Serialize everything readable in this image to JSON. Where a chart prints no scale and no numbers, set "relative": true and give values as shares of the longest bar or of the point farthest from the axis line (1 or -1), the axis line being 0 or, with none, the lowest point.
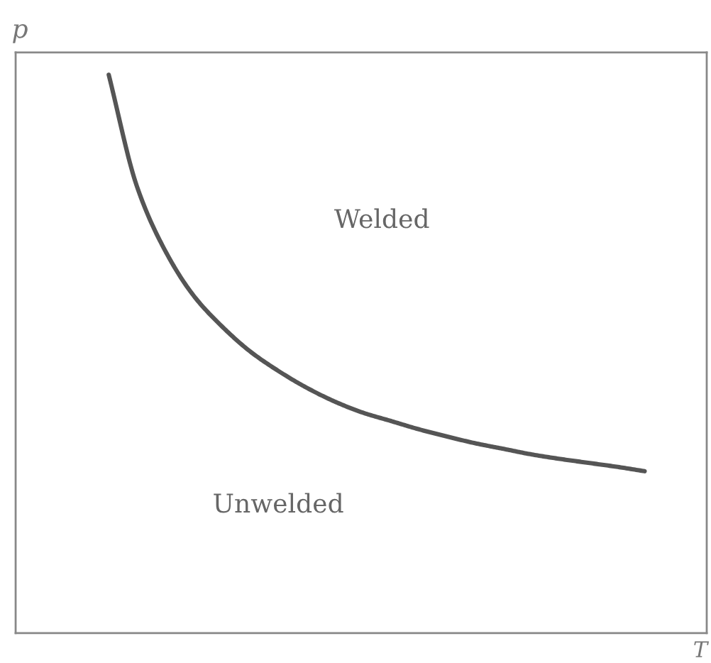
{
  "chart_data": {
    "type": "line",
    "relative": true,
    "ylabel": "p",
    "xlabel": "T",
    "categories": [
      null,
      null,
      null,
      null,
      null,
      null,
      null,
      null,
      null,
      null,
      null,
      null,
      null,
      null,
      null,
      null,
      null,
      null,
      null,
      null
    ],
    "series": [
      {
        "color": "#555555",
        "values": [
          1,
          0.8,
          0.685,
          0.605,
          0.55,
          0.505,
          0.47,
          0.44,
          0.415,
          0.395,
          0.38,
          0.365,
          0.352,
          0.34,
          0.33,
          0.32,
          0.312,
          0.305,
          0.298,
          0.29
        ]
      }
    ],
    "annotations": [
      "Welded",
      "Unwelded"
    ]
  }
}
